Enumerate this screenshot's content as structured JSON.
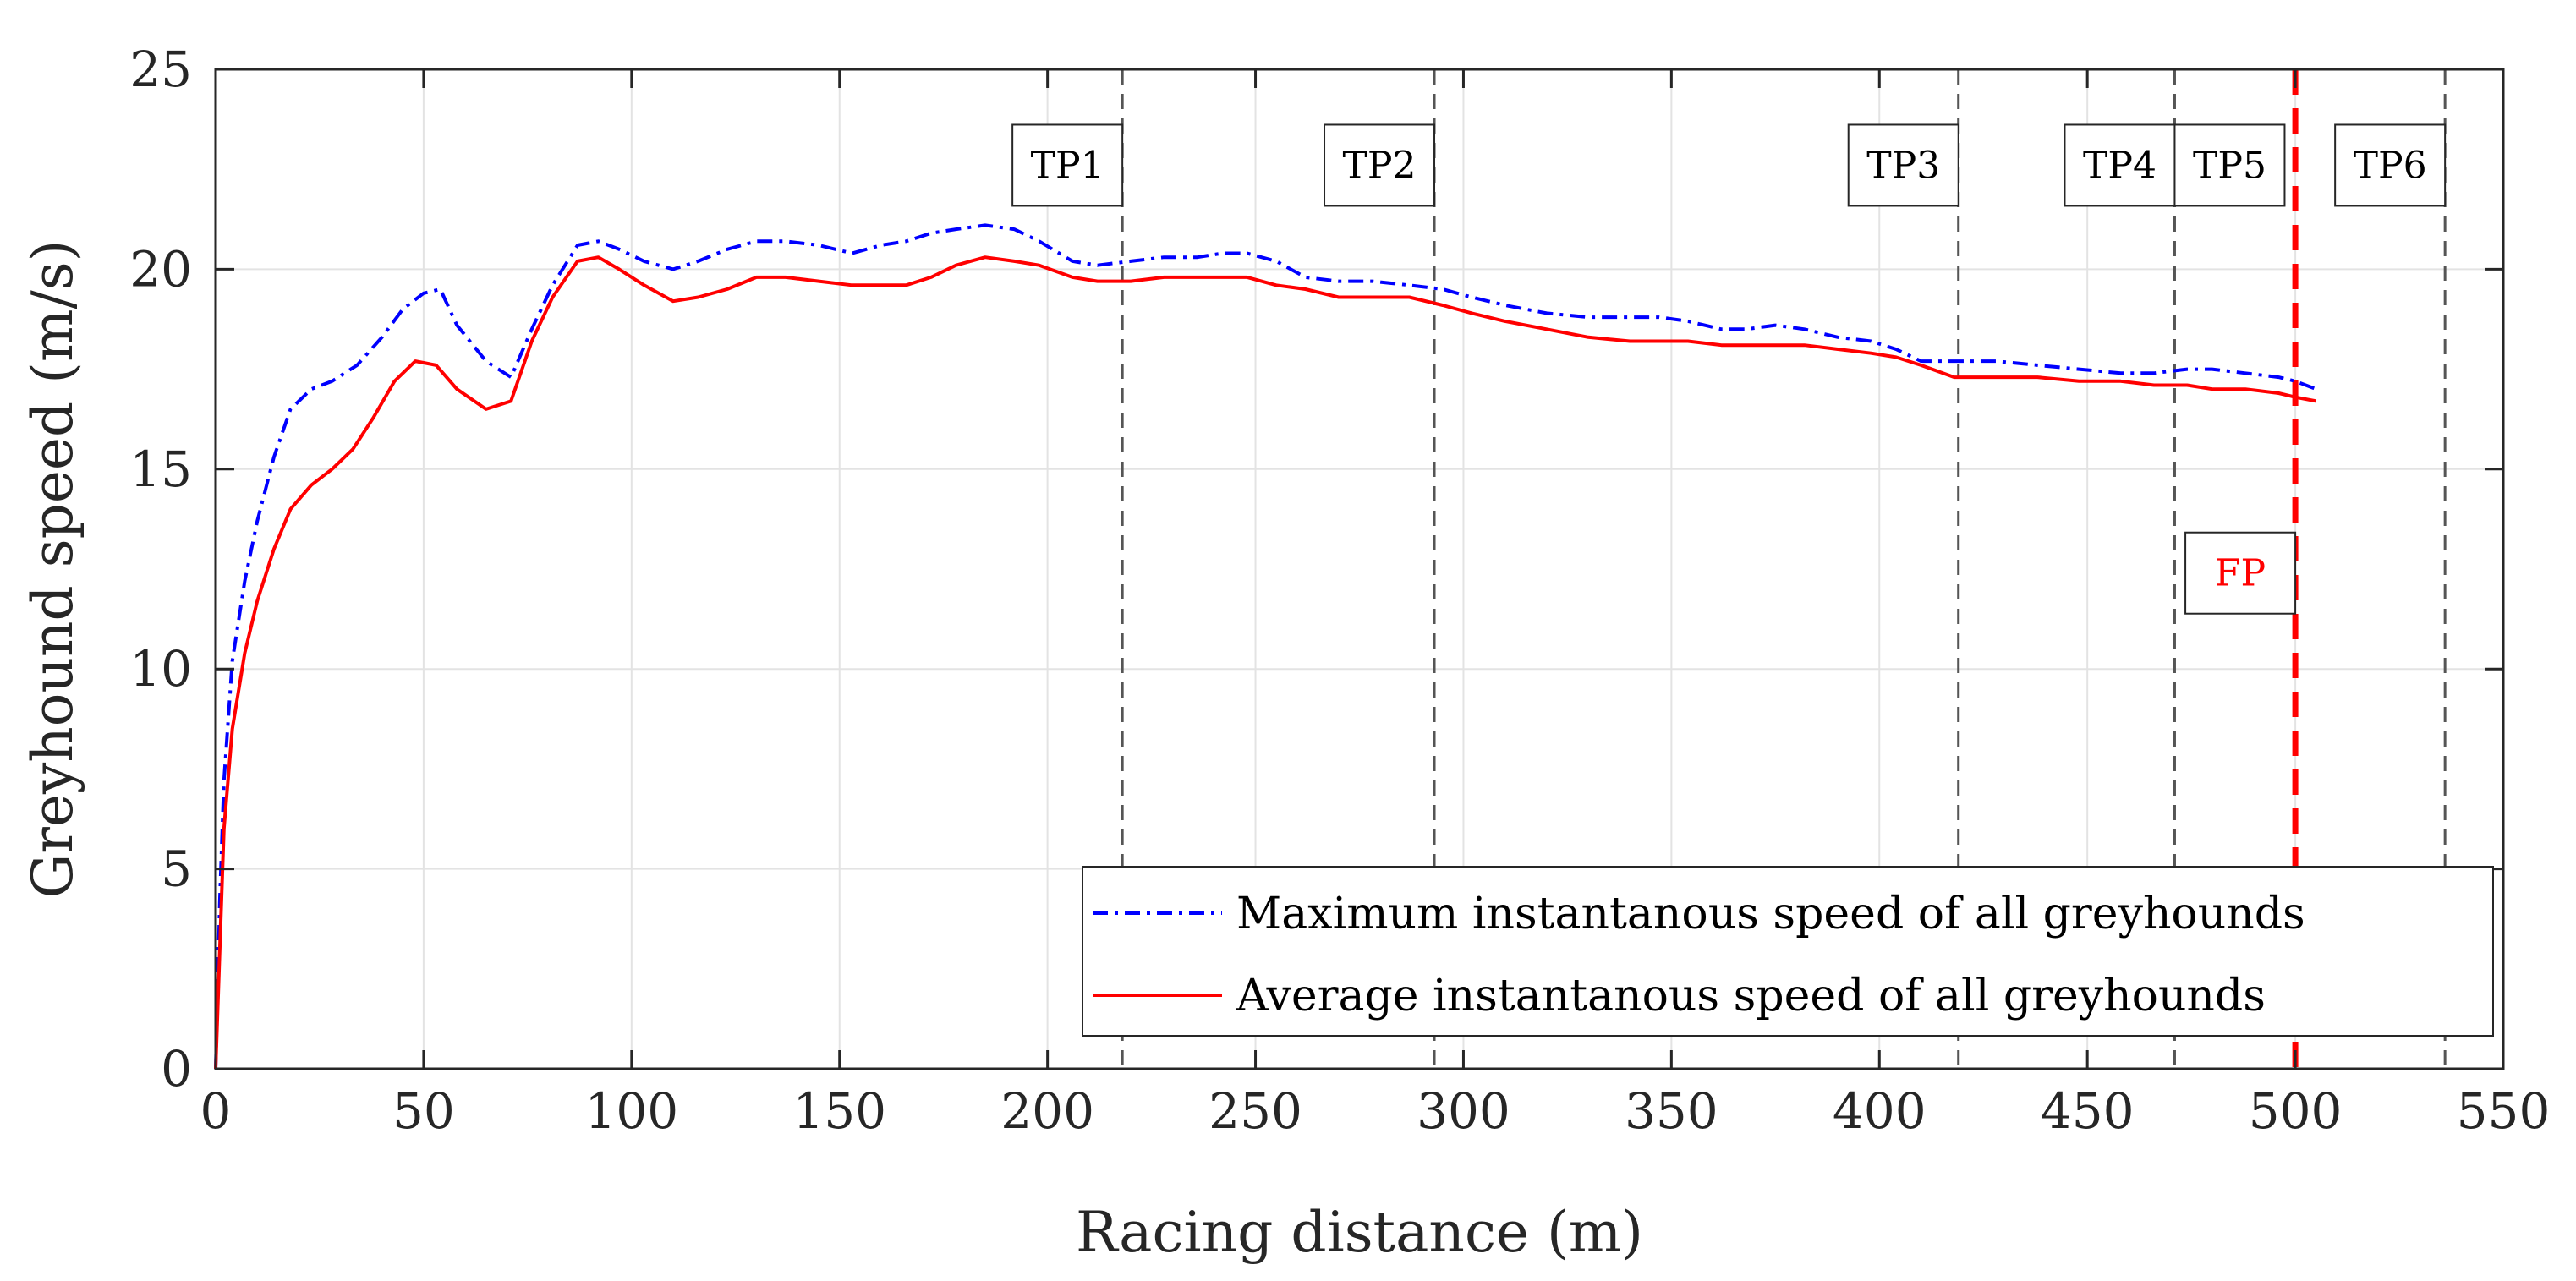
{
  "chart_data": {
    "type": "line",
    "title": "",
    "xlabel": "Racing distance (m)",
    "ylabel": "Greyhound speed (m/s)",
    "xlim": [
      0,
      550
    ],
    "ylim": [
      0,
      25
    ],
    "xticks": [
      0,
      50,
      100,
      150,
      200,
      250,
      300,
      350,
      400,
      450,
      500,
      550
    ],
    "yticks": [
      0,
      5,
      10,
      15,
      20,
      25
    ],
    "grid": true,
    "legend_position": "bottom-right",
    "series": [
      {
        "name": "Maximum instantanous speed of all greyhounds",
        "color": "#0000ff",
        "style": "dash-dot",
        "x": [
          0,
          1,
          2,
          4,
          7,
          10,
          14,
          18,
          23,
          28,
          34,
          40,
          45,
          50,
          54,
          58,
          65,
          71,
          76,
          81,
          87,
          92,
          97,
          103,
          110,
          116,
          123,
          130,
          137,
          145,
          153,
          160,
          166,
          172,
          178,
          185,
          192,
          198,
          206,
          212,
          220,
          228,
          236,
          242,
          248,
          255,
          262,
          270,
          278,
          287,
          295,
          302,
          310,
          320,
          330,
          340,
          347,
          354,
          362,
          368,
          375,
          382,
          390,
          398,
          404,
          410,
          418,
          428,
          438,
          448,
          458,
          466,
          474,
          480,
          488,
          496,
          500,
          505
        ],
        "values": [
          0,
          4.2,
          7.2,
          10.2,
          12.2,
          13.7,
          15.3,
          16.5,
          17.0,
          17.2,
          17.6,
          18.3,
          19.0,
          19.4,
          19.5,
          18.6,
          17.7,
          17.3,
          18.5,
          19.6,
          20.6,
          20.7,
          20.5,
          20.2,
          20.0,
          20.2,
          20.5,
          20.7,
          20.7,
          20.6,
          20.4,
          20.6,
          20.7,
          20.9,
          21.0,
          21.1,
          21.0,
          20.7,
          20.2,
          20.1,
          20.2,
          20.3,
          20.3,
          20.4,
          20.4,
          20.2,
          19.8,
          19.7,
          19.7,
          19.6,
          19.5,
          19.3,
          19.1,
          18.9,
          18.8,
          18.8,
          18.8,
          18.7,
          18.5,
          18.5,
          18.6,
          18.5,
          18.3,
          18.2,
          18.0,
          17.7,
          17.7,
          17.7,
          17.6,
          17.5,
          17.4,
          17.4,
          17.5,
          17.5,
          17.4,
          17.3,
          17.2,
          17.0
        ]
      },
      {
        "name": "Average instantanous speed of all greyhounds",
        "color": "#ff0000",
        "style": "solid",
        "x": [
          0,
          1,
          2,
          4,
          7,
          10,
          14,
          18,
          23,
          28,
          33,
          38,
          43,
          48,
          53,
          58,
          65,
          71,
          76,
          81,
          87,
          92,
          97,
          103,
          110,
          116,
          123,
          130,
          137,
          145,
          153,
          160,
          166,
          172,
          178,
          185,
          192,
          198,
          206,
          212,
          220,
          228,
          236,
          242,
          248,
          255,
          262,
          270,
          278,
          287,
          295,
          302,
          310,
          320,
          330,
          340,
          347,
          354,
          362,
          368,
          375,
          382,
          390,
          398,
          404,
          410,
          418,
          428,
          438,
          448,
          458,
          466,
          474,
          480,
          488,
          496,
          500,
          505
        ],
        "values": [
          0,
          3.0,
          6.0,
          8.5,
          10.4,
          11.7,
          13.0,
          14.0,
          14.6,
          15.0,
          15.5,
          16.3,
          17.2,
          17.7,
          17.6,
          17.0,
          16.5,
          16.7,
          18.2,
          19.3,
          20.2,
          20.3,
          20.0,
          19.6,
          19.2,
          19.3,
          19.5,
          19.8,
          19.8,
          19.7,
          19.6,
          19.6,
          19.6,
          19.8,
          20.1,
          20.3,
          20.2,
          20.1,
          19.8,
          19.7,
          19.7,
          19.8,
          19.8,
          19.8,
          19.8,
          19.6,
          19.5,
          19.3,
          19.3,
          19.3,
          19.1,
          18.9,
          18.7,
          18.5,
          18.3,
          18.2,
          18.2,
          18.2,
          18.1,
          18.1,
          18.1,
          18.1,
          18.0,
          17.9,
          17.8,
          17.6,
          17.3,
          17.3,
          17.3,
          17.2,
          17.2,
          17.1,
          17.1,
          17.0,
          17.0,
          16.9,
          16.8,
          16.7
        ]
      }
    ],
    "vertical_markers": [
      {
        "label": "TP1",
        "x": 218,
        "color": "#000000",
        "label_side": "left",
        "label_y": 22.6
      },
      {
        "label": "TP2",
        "x": 293,
        "color": "#000000",
        "label_side": "left",
        "label_y": 22.6
      },
      {
        "label": "TP3",
        "x": 419,
        "color": "#000000",
        "label_side": "left",
        "label_y": 22.6
      },
      {
        "label": "TP4",
        "x": 471,
        "color": "#000000",
        "label_side": "left",
        "label_y": 22.6
      },
      {
        "label": "TP5",
        "x": 471,
        "color": "#000000",
        "label_side": "right",
        "label_y": 22.6
      },
      {
        "label": "TP6",
        "x": 536,
        "color": "#000000",
        "label_side": "left",
        "label_y": 22.6
      },
      {
        "label": "FP",
        "x": 500,
        "color": "#ff0000",
        "label_side": "left",
        "label_y": 12.4
      }
    ]
  }
}
